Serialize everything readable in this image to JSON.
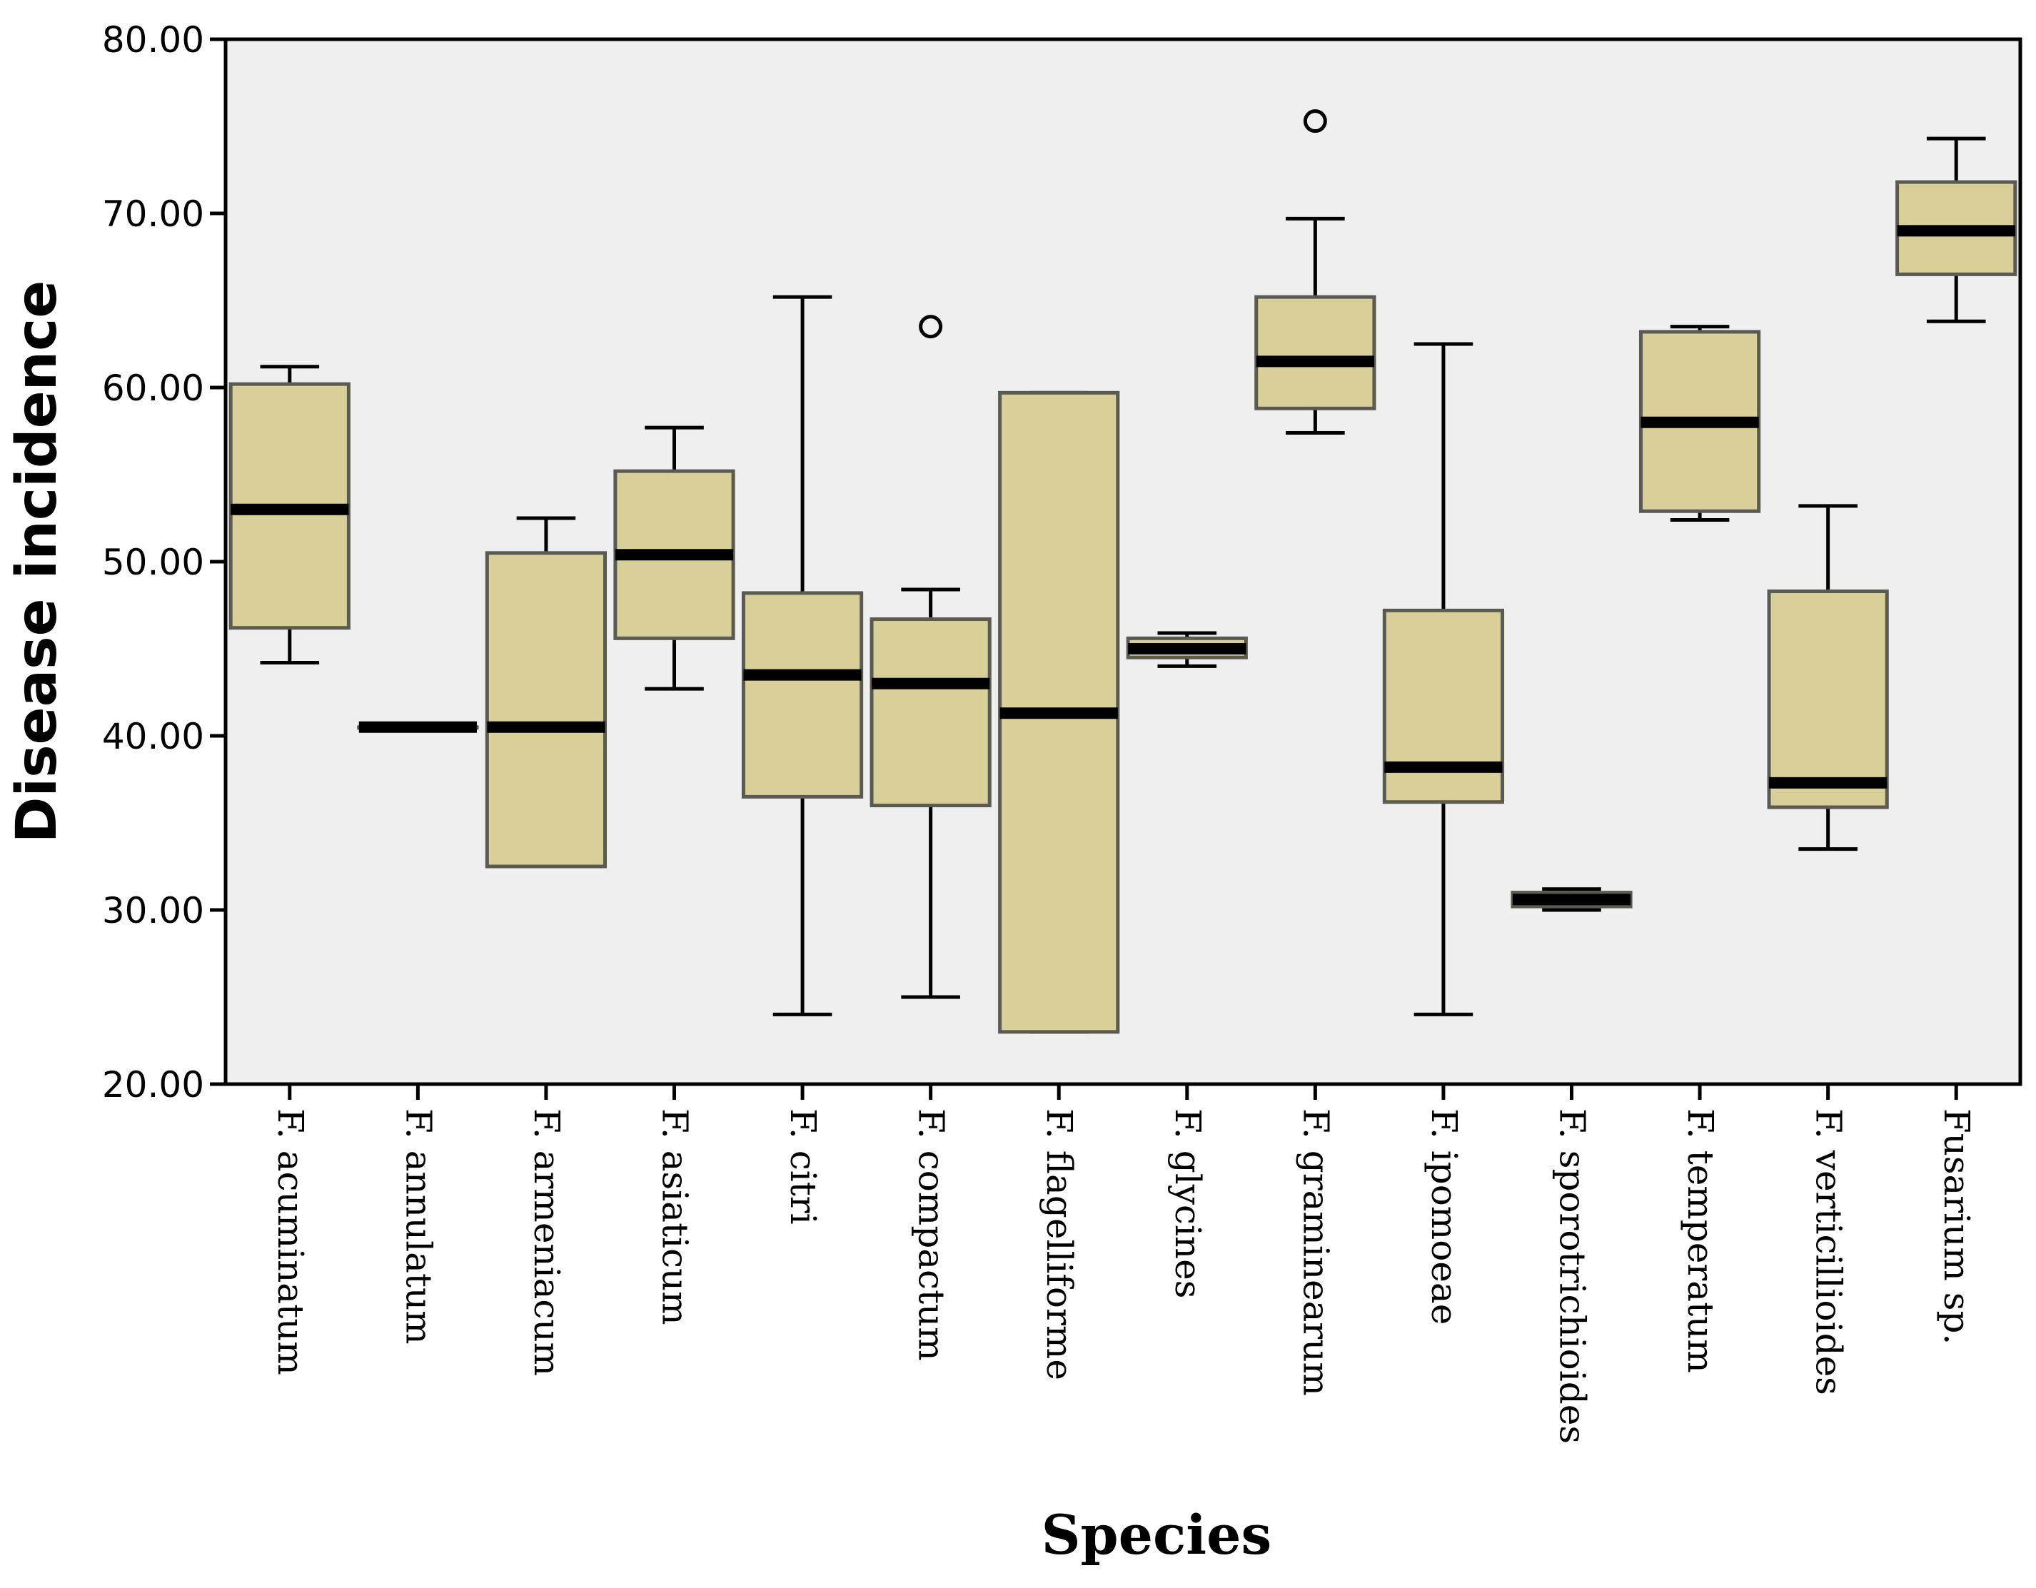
{
  "chart_data": {
    "type": "boxplot",
    "title": "",
    "xlabel": "Species",
    "ylabel": "Disease incidence",
    "ylim": [
      20,
      80
    ],
    "yticks": [
      20,
      30,
      40,
      50,
      60,
      70,
      80
    ],
    "ytick_labels": [
      "20.00",
      "30.00",
      "40.00",
      "50.00",
      "60.00",
      "70.00",
      "80.00"
    ],
    "grid": false,
    "colors": {
      "plot_background": "#efefef",
      "box_fill": "#d8d098",
      "box_stroke": "#5a5a52",
      "median": "#000000",
      "whisker": "#000000"
    },
    "categories": [
      "F. acuminatum",
      "F. annulatum",
      "F. armeniacum",
      "F. asiaticum",
      "F. citri",
      "F. compactum",
      "F. flagelliforme",
      "F. glycines",
      "F. graminearum",
      "F. ipomoeae",
      "F. sporotrichioides",
      "F. temperatum",
      "F. verticillioides",
      "Fusarium sp."
    ],
    "boxes": [
      {
        "min": 44.2,
        "q1": 46.2,
        "median": 53.0,
        "q3": 60.2,
        "max": 61.2,
        "outliers": []
      },
      {
        "min": 40.5,
        "q1": 40.5,
        "median": 40.5,
        "q3": 40.5,
        "max": 40.5,
        "outliers": []
      },
      {
        "min": 32.5,
        "q1": 32.5,
        "median": 40.5,
        "q3": 50.5,
        "max": 52.5,
        "outliers": []
      },
      {
        "min": 42.7,
        "q1": 45.6,
        "median": 50.4,
        "q3": 55.2,
        "max": 57.7,
        "outliers": []
      },
      {
        "min": 24.0,
        "q1": 36.5,
        "median": 43.5,
        "q3": 48.2,
        "max": 65.2,
        "outliers": []
      },
      {
        "min": 25.0,
        "q1": 36.0,
        "median": 43.0,
        "q3": 46.7,
        "max": 48.4,
        "outliers": [
          63.5
        ]
      },
      {
        "min": 23.0,
        "q1": 23.0,
        "median": 41.3,
        "q3": 59.7,
        "max": 59.7,
        "outliers": []
      },
      {
        "min": 44.0,
        "q1": 44.5,
        "median": 45.0,
        "q3": 45.6,
        "max": 45.9,
        "outliers": []
      },
      {
        "min": 57.4,
        "q1": 58.8,
        "median": 61.5,
        "q3": 65.2,
        "max": 69.7,
        "outliers": [
          75.3
        ]
      },
      {
        "min": 24.0,
        "q1": 36.2,
        "median": 38.2,
        "q3": 47.2,
        "max": 62.5,
        "outliers": []
      },
      {
        "min": 30.0,
        "q1": 30.2,
        "median": 30.6,
        "q3": 31.0,
        "max": 31.2,
        "outliers": []
      },
      {
        "min": 52.4,
        "q1": 52.9,
        "median": 58.0,
        "q3": 63.2,
        "max": 63.5,
        "outliers": []
      },
      {
        "min": 33.5,
        "q1": 35.9,
        "median": 37.3,
        "q3": 48.3,
        "max": 53.2,
        "outliers": []
      },
      {
        "min": 63.8,
        "q1": 66.5,
        "median": 69.0,
        "q3": 71.8,
        "max": 74.3,
        "outliers": []
      }
    ]
  }
}
